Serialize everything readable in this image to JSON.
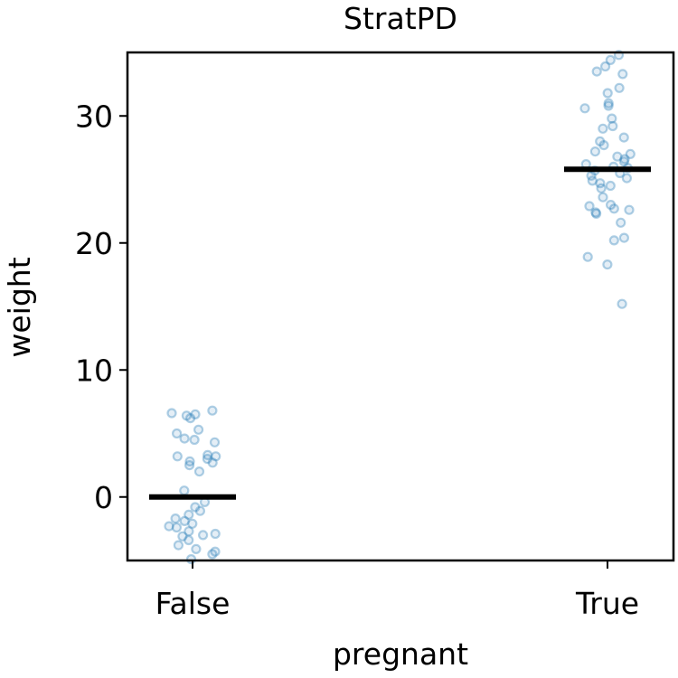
{
  "chart_data": {
    "type": "scatter",
    "title": "StratPD",
    "xlabel": "pregnant",
    "ylabel": "weight",
    "categories": [
      "False",
      "True"
    ],
    "ylim": [
      -5,
      35
    ],
    "yticks": [
      0,
      10,
      20,
      30
    ],
    "grid": false,
    "legend": "none",
    "point_color": "#1f77b4",
    "mean_line_color": "#000000",
    "means": [
      0,
      25.8
    ],
    "series": [
      {
        "category": "False",
        "values": [
          6.8,
          6.6,
          6.5,
          6.4,
          6.2,
          5.3,
          5.0,
          4.6,
          4.5,
          4.3,
          3.3,
          3.2,
          3.2,
          3.0,
          2.8,
          2.7,
          2.5,
          2.0,
          0.5,
          -0.4,
          -0.8,
          -1.1,
          -1.4,
          -1.7,
          -1.9,
          -2.1,
          -2.3,
          -2.4,
          -2.7,
          -2.9,
          -3.0,
          -3.1,
          -3.4,
          -3.8,
          -4.1,
          -4.3,
          -4.5,
          -4.9
        ]
      },
      {
        "category": "True",
        "values": [
          34.8,
          34.4,
          33.9,
          33.5,
          33.3,
          32.2,
          31.8,
          31.0,
          30.8,
          30.6,
          29.8,
          29.2,
          29.0,
          28.3,
          28.0,
          27.7,
          27.2,
          27.0,
          26.8,
          26.6,
          26.4,
          26.2,
          26.0,
          25.9,
          25.7,
          25.5,
          25.3,
          25.1,
          24.9,
          24.7,
          24.5,
          24.3,
          23.6,
          23.0,
          22.9,
          22.7,
          22.6,
          22.4,
          22.3,
          21.6,
          20.4,
          20.2,
          18.9,
          18.3,
          15.2
        ]
      }
    ]
  }
}
